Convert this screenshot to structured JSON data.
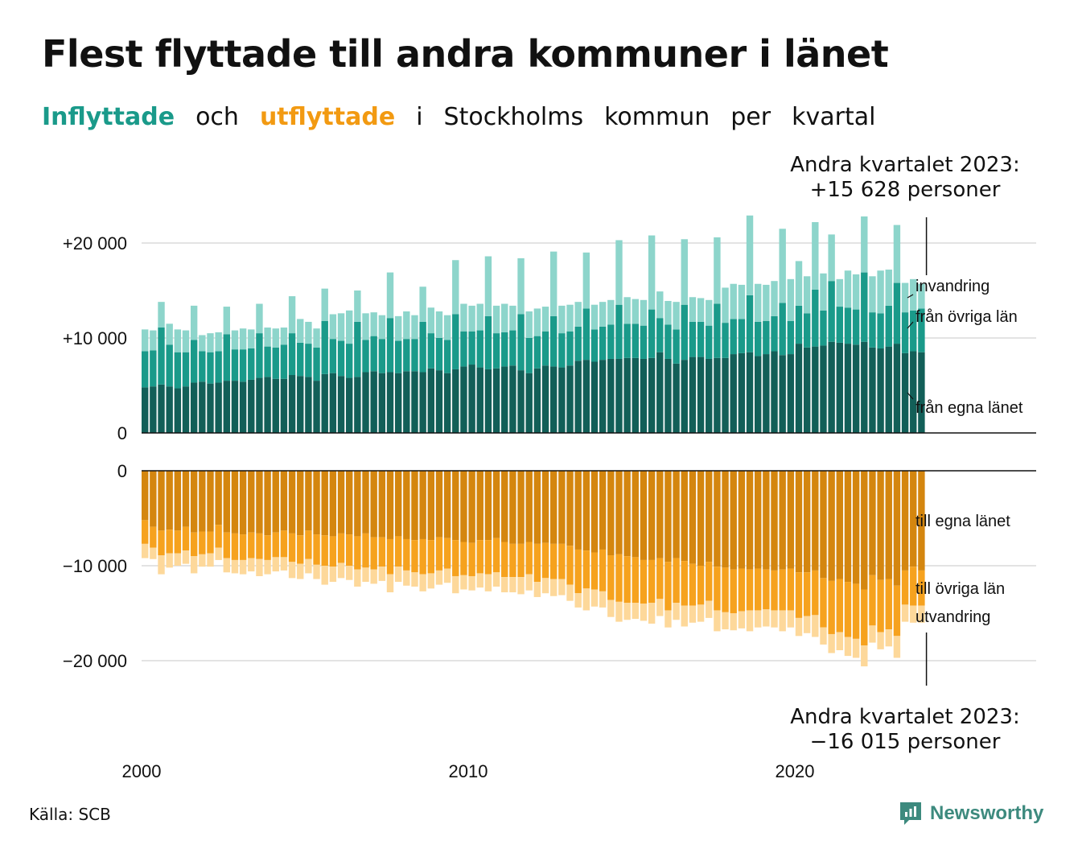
{
  "header": {
    "title": "Flest flyttade till andra kommuner i länet",
    "subtitle_words": [
      "Inflyttade",
      "och",
      "utflyttade",
      "i",
      "Stockholms",
      "kommun",
      "per",
      "kvartal"
    ]
  },
  "callouts": {
    "top_line1": "Andra kvartalet 2023:",
    "top_line2": "+15 628 personer",
    "bottom_line1": "Andra kvartalet 2023:",
    "bottom_line2": "−16 015 personer"
  },
  "footer": {
    "source": "Källa: SCB",
    "brand": "Newsworthy"
  },
  "colors": {
    "in_own": "#125f58",
    "in_other": "#1a9a8a",
    "in_abroad": "#8dd5cb",
    "out_own": "#d4860f",
    "out_other": "#f6a21e",
    "out_abroad": "#fdd89a",
    "grid": "#e3e3e3",
    "axis": "#111111",
    "inflyttade_text": "#1a9a8a",
    "utflyttade_text": "#f29a12",
    "brand": "#3d8a7e"
  },
  "chart_data": {
    "type": "bar",
    "stacked": true,
    "x_start": "2000 Q1",
    "x_end": "2023 Q2",
    "x_ticks": [
      "2000",
      "2010",
      "2020"
    ],
    "top_panel": {
      "y_ticks": [
        "+20 000",
        "+10 000",
        "0"
      ],
      "y_tick_values": [
        20000,
        10000,
        0
      ],
      "ylim": [
        0,
        22500
      ],
      "series": [
        {
          "name": "från egna länet",
          "values": [
            4800,
            4900,
            5100,
            4900,
            4700,
            4900,
            5300,
            5400,
            5200,
            5300,
            5500,
            5500,
            5400,
            5600,
            5800,
            5900,
            5700,
            5700,
            6100,
            6000,
            5900,
            5500,
            6200,
            6300,
            6000,
            5800,
            5900,
            6400,
            6500,
            6300,
            6400,
            6300,
            6500,
            6500,
            6400,
            6800,
            6600,
            6300,
            6700,
            7000,
            7200,
            6900,
            6700,
            6800,
            7000,
            7100,
            6600,
            6300,
            6800,
            7100,
            7000,
            6900,
            7100,
            7600,
            7700,
            7500,
            7700,
            7800,
            7800,
            7900,
            7900,
            7800,
            7900,
            8500,
            7800,
            7300,
            7700,
            8000,
            8000,
            7800,
            7900,
            7900,
            8300,
            8400,
            8500,
            8100,
            8300,
            8600,
            8200,
            8300,
            9400,
            9000,
            9100,
            9200,
            9600,
            9500,
            9400,
            9300,
            9600,
            9000,
            8900,
            9100,
            9400,
            8400,
            8600,
            8500
          ]
        },
        {
          "name": "från övriga län",
          "values": [
            3800,
            3800,
            6000,
            4400,
            3800,
            3600,
            4500,
            3200,
            3300,
            3300,
            4900,
            3300,
            3400,
            3300,
            4700,
            3200,
            3300,
            3600,
            4400,
            3500,
            3500,
            3500,
            5600,
            3600,
            3700,
            3600,
            5800,
            3400,
            3700,
            3600,
            5700,
            3400,
            3400,
            3400,
            5300,
            3700,
            3400,
            3500,
            5800,
            3700,
            3500,
            3900,
            5600,
            3700,
            3600,
            3700,
            5900,
            3700,
            3400,
            3600,
            5300,
            3600,
            3600,
            3600,
            5400,
            3400,
            3500,
            3600,
            5700,
            3600,
            3600,
            3500,
            5100,
            3600,
            3600,
            3600,
            5800,
            3700,
            3700,
            3500,
            5700,
            3700,
            3700,
            3600,
            6000,
            3600,
            3500,
            3700,
            5500,
            3500,
            4000,
            3600,
            6000,
            3700,
            6400,
            3800,
            3800,
            3700,
            7300,
            3700,
            3700,
            4300,
            6400,
            4300,
            4300,
            4600
          ]
        },
        {
          "name": "invandring",
          "values": [
            2300,
            2100,
            2700,
            2200,
            2400,
            2300,
            3600,
            1700,
            2000,
            2000,
            2900,
            2000,
            2200,
            2000,
            3100,
            2000,
            2000,
            1800,
            3900,
            2500,
            2300,
            2000,
            3400,
            2600,
            2900,
            3500,
            3300,
            2800,
            2500,
            2500,
            4800,
            2600,
            2900,
            2500,
            3700,
            2700,
            2800,
            2600,
            5700,
            2900,
            2700,
            2800,
            6300,
            2900,
            3000,
            2600,
            5900,
            2800,
            2900,
            2600,
            6800,
            2900,
            2800,
            2600,
            5900,
            2600,
            2600,
            2600,
            6800,
            2800,
            2600,
            2700,
            7800,
            2800,
            2500,
            2900,
            6900,
            2600,
            2500,
            2700,
            7000,
            3700,
            3700,
            3600,
            8400,
            4000,
            3800,
            3700,
            7800,
            4400,
            4700,
            3900,
            7100,
            3900,
            4900,
            2900,
            3900,
            3700,
            5900,
            3800,
            4500,
            3800,
            6100,
            3100,
            3300,
            2600
          ]
        }
      ]
    },
    "bottom_panel": {
      "y_ticks": [
        "0",
        "−10 000",
        "−20 000"
      ],
      "y_tick_values": [
        0,
        -10000,
        -20000
      ],
      "ylim": [
        -22500,
        0
      ],
      "series": [
        {
          "name": "till egna länet",
          "values": [
            5200,
            5900,
            6300,
            6200,
            6300,
            5900,
            6500,
            6400,
            6400,
            5700,
            6500,
            6600,
            6700,
            6500,
            6600,
            6800,
            6500,
            6300,
            6600,
            6800,
            6300,
            6700,
            6800,
            6900,
            6600,
            6700,
            6900,
            6600,
            7000,
            7000,
            7200,
            6900,
            7200,
            7300,
            7200,
            7300,
            7000,
            7100,
            7300,
            7500,
            7600,
            7300,
            7300,
            7100,
            7500,
            7700,
            7700,
            7500,
            7700,
            7600,
            7700,
            7700,
            7900,
            8300,
            8400,
            8600,
            8300,
            8900,
            8800,
            9000,
            9100,
            9400,
            9400,
            9200,
            9600,
            9200,
            9500,
            9800,
            10000,
            9600,
            10100,
            10200,
            10400,
            10300,
            10400,
            10300,
            10400,
            10500,
            10400,
            10300,
            10700,
            10700,
            10500,
            11300,
            11600,
            11400,
            11700,
            11900,
            12500,
            11000,
            11500,
            11400,
            12100,
            10500,
            10100,
            10500
          ]
        },
        {
          "name": "till övriga län",
          "values": [
            2500,
            2200,
            2600,
            2500,
            2400,
            2500,
            2500,
            2400,
            2300,
            2400,
            2700,
            2800,
            2700,
            2700,
            2700,
            2600,
            2600,
            2800,
            3000,
            3000,
            3000,
            3200,
            3200,
            3200,
            3100,
            3300,
            3500,
            3600,
            3400,
            3100,
            3700,
            3200,
            3300,
            3400,
            3700,
            3500,
            3500,
            3200,
            3800,
            3500,
            3500,
            3500,
            3600,
            3600,
            3700,
            3500,
            3500,
            3400,
            4000,
            3700,
            3700,
            3700,
            4100,
            4600,
            4000,
            3900,
            4400,
            4700,
            5000,
            4900,
            4800,
            4600,
            4500,
            4300,
            5100,
            4700,
            4700,
            4400,
            4100,
            4100,
            4600,
            4700,
            4600,
            4500,
            4300,
            4400,
            4200,
            4200,
            4300,
            4400,
            4800,
            4600,
            4700,
            5200,
            5600,
            5600,
            5800,
            5800,
            5900,
            5300,
            5500,
            5300,
            5300,
            3600,
            4100,
            3700
          ]
        },
        {
          "name": "utvandring",
          "values": [
            1500,
            1200,
            2000,
            1500,
            1300,
            1400,
            1800,
            1300,
            1400,
            1300,
            1500,
            1400,
            1500,
            1400,
            1800,
            1500,
            1500,
            1400,
            1700,
            1600,
            1500,
            1500,
            2000,
            1600,
            1600,
            1500,
            1800,
            1500,
            1500,
            1500,
            1900,
            1600,
            1600,
            1500,
            1800,
            1600,
            1500,
            1500,
            1800,
            1500,
            1500,
            1500,
            1800,
            1500,
            1600,
            1600,
            1800,
            1700,
            1600,
            1600,
            1800,
            1700,
            1700,
            1500,
            2300,
            1800,
            1700,
            1800,
            2100,
            1800,
            1700,
            1800,
            2200,
            1800,
            1800,
            1800,
            2200,
            1800,
            1800,
            1800,
            2200,
            1800,
            1800,
            1800,
            2200,
            1800,
            1800,
            1800,
            2200,
            1800,
            1900,
            1800,
            2300,
            1800,
            2000,
            1900,
            2000,
            2000,
            2200,
            1800,
            1800,
            1800,
            2300,
            1800,
            1800,
            1800
          ]
        }
      ]
    },
    "series_labels": [
      "invandring",
      "från övriga län",
      "från egna länet",
      "till egna länet",
      "till övriga län",
      "utvandring"
    ],
    "latest": {
      "period": "2023 Q2",
      "in_total": 15628,
      "out_total": -16015
    }
  }
}
